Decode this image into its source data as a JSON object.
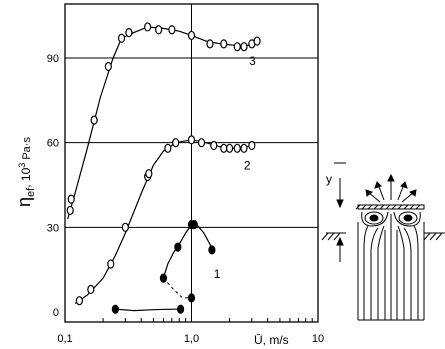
{
  "chart_data": {
    "type": "scatter",
    "x_scale": "log",
    "xlim": [
      0.1,
      10
    ],
    "ylim": [
      0,
      105
    ],
    "grid": true,
    "ylabel_main": "η",
    "ylabel_sub": "ef",
    "ylabel_rest": ", 10",
    "ylabel_sup": "3",
    "ylabel_unit": " Pa·s",
    "xlabel": "Ū, m/s",
    "x_ticks": [
      {
        "value": 0.1,
        "label": "0,1"
      },
      {
        "value": 1,
        "label": "1,0"
      },
      {
        "value": 10,
        "label": "10"
      }
    ],
    "y_ticks": [
      {
        "value": 0,
        "label": "0"
      },
      {
        "value": 30,
        "label": "30"
      },
      {
        "value": 60,
        "label": "60"
      },
      {
        "value": 90,
        "label": "90"
      }
    ],
    "series": [
      {
        "name": "3",
        "marker": "open",
        "points": [
          [
            0.11,
            36
          ],
          [
            0.112,
            40
          ],
          [
            0.17,
            68
          ],
          [
            0.22,
            87
          ],
          [
            0.28,
            97
          ],
          [
            0.32,
            99
          ],
          [
            0.45,
            101
          ],
          [
            0.55,
            100
          ],
          [
            0.7,
            100
          ],
          [
            1.0,
            98
          ],
          [
            1.4,
            95
          ],
          [
            1.8,
            95
          ],
          [
            2.3,
            94
          ],
          [
            2.6,
            94
          ],
          [
            3.0,
            95
          ],
          [
            3.3,
            96
          ]
        ],
        "curve": [
          [
            0.105,
            33
          ],
          [
            0.12,
            42
          ],
          [
            0.15,
            58
          ],
          [
            0.19,
            76
          ],
          [
            0.24,
            90
          ],
          [
            0.28,
            97
          ],
          [
            0.35,
            99
          ],
          [
            0.45,
            101
          ],
          [
            0.6,
            100.5
          ],
          [
            0.8,
            99.5
          ],
          [
            1.0,
            98
          ],
          [
            1.3,
            96
          ],
          [
            1.7,
            95
          ],
          [
            2.2,
            94.5
          ],
          [
            2.8,
            94.5
          ],
          [
            3.3,
            96
          ]
        ]
      },
      {
        "name": "2",
        "marker": "open",
        "points": [
          [
            0.13,
            4
          ],
          [
            0.16,
            8
          ],
          [
            0.23,
            17
          ],
          [
            0.3,
            30
          ],
          [
            0.45,
            48
          ],
          [
            0.46,
            49
          ],
          [
            0.65,
            58
          ],
          [
            0.75,
            60
          ],
          [
            1.0,
            61
          ],
          [
            1.2,
            60
          ],
          [
            1.5,
            59
          ],
          [
            1.8,
            58
          ],
          [
            2.0,
            58
          ],
          [
            2.3,
            58
          ],
          [
            2.6,
            58
          ],
          [
            3.0,
            59
          ]
        ],
        "curve": [
          [
            0.12,
            3
          ],
          [
            0.15,
            6
          ],
          [
            0.2,
            12
          ],
          [
            0.25,
            20
          ],
          [
            0.3,
            28
          ],
          [
            0.4,
            42
          ],
          [
            0.5,
            52
          ],
          [
            0.6,
            57
          ],
          [
            0.75,
            60
          ],
          [
            1.0,
            61
          ],
          [
            1.3,
            60
          ],
          [
            1.7,
            58.5
          ],
          [
            2.2,
            58
          ],
          [
            2.7,
            58.5
          ],
          [
            3.0,
            59
          ]
        ]
      },
      {
        "name": "1",
        "marker": "filled",
        "points": [
          [
            0.25,
            1
          ],
          [
            0.82,
            1
          ],
          [
            0.6,
            12
          ],
          [
            0.78,
            23
          ],
          [
            1.0,
            31
          ],
          [
            1.05,
            31
          ],
          [
            1.0,
            5
          ],
          [
            1.45,
            22
          ]
        ],
        "curve": [
          [
            0.25,
            1
          ],
          [
            0.35,
            0.5
          ],
          [
            0.5,
            0.8
          ],
          [
            0.7,
            1
          ],
          [
            0.82,
            1
          ]
        ],
        "curve2": [
          [
            0.6,
            12
          ],
          [
            0.65,
            17
          ],
          [
            0.72,
            21
          ],
          [
            0.8,
            24
          ],
          [
            0.9,
            28
          ],
          [
            1.0,
            31
          ],
          [
            1.1,
            31
          ],
          [
            1.25,
            28
          ],
          [
            1.4,
            24
          ],
          [
            1.45,
            22
          ]
        ],
        "dashed": [
          [
            0.6,
            12
          ],
          [
            0.72,
            8
          ],
          [
            0.85,
            5
          ],
          [
            1.0,
            5
          ]
        ]
      }
    ]
  }
}
